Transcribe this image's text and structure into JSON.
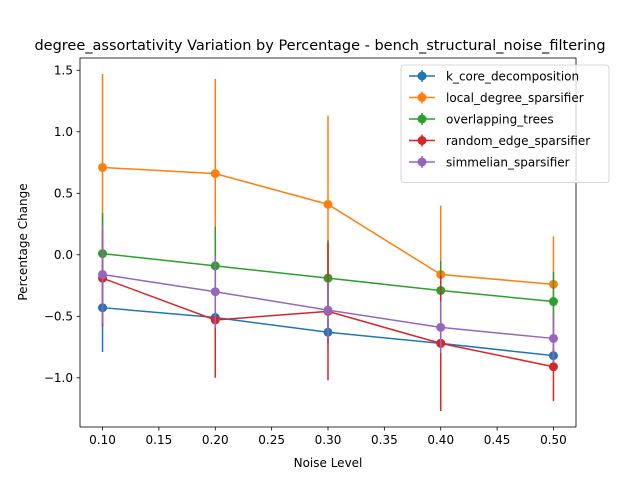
{
  "chart_data": {
    "type": "line",
    "title": "degree_assortativity Variation by Percentage - bench_structural_noise_filtering",
    "xlabel": "Noise Level",
    "ylabel": "Percentage Change",
    "xlim": [
      0.08,
      0.52
    ],
    "ylim": [
      -1.4,
      1.6
    ],
    "x": [
      0.1,
      0.2,
      0.3,
      0.4,
      0.5
    ],
    "x_ticks": [
      0.1,
      0.15,
      0.2,
      0.25,
      0.3,
      0.35,
      0.4,
      0.45,
      0.5
    ],
    "x_tick_labels": [
      "0.10",
      "0.15",
      "0.20",
      "0.25",
      "0.30",
      "0.35",
      "0.40",
      "0.45",
      "0.50"
    ],
    "y_ticks": [
      -1.0,
      -0.5,
      0.0,
      0.5,
      1.0,
      1.5
    ],
    "y_tick_labels": [
      "−1.0",
      "−0.5",
      "0.0",
      "0.5",
      "1.0",
      "1.5"
    ],
    "grid": false,
    "legend_position": "top-right",
    "series": [
      {
        "name": "k_core_decomposition",
        "color": "#1f77b4",
        "values": [
          -0.43,
          -0.51,
          -0.63,
          -0.72,
          -0.82
        ],
        "errors": [
          0.36,
          0.1,
          0.1,
          0.1,
          0.06
        ]
      },
      {
        "name": "local_degree_sparsifier",
        "color": "#ff7f0e",
        "values": [
          0.71,
          0.66,
          0.41,
          -0.16,
          -0.24
        ],
        "errors": [
          0.76,
          0.77,
          0.72,
          0.56,
          0.39
        ]
      },
      {
        "name": "overlapping_trees",
        "color": "#2ca02c",
        "values": [
          0.01,
          -0.09,
          -0.19,
          -0.29,
          -0.38
        ],
        "errors": [
          0.33,
          0.32,
          0.31,
          0.24,
          0.24
        ]
      },
      {
        "name": "random_edge_sparsifier",
        "color": "#d62728",
        "values": [
          -0.19,
          -0.53,
          -0.46,
          -0.72,
          -0.91
        ],
        "errors": [
          0.39,
          0.47,
          0.56,
          0.55,
          0.28
        ]
      },
      {
        "name": "simmelian_sparsifier",
        "color": "#9467bd",
        "values": [
          -0.16,
          -0.3,
          -0.45,
          -0.59,
          -0.68
        ],
        "errors": [
          0.4,
          0.29,
          0.23,
          0.21,
          0.2
        ]
      }
    ]
  }
}
